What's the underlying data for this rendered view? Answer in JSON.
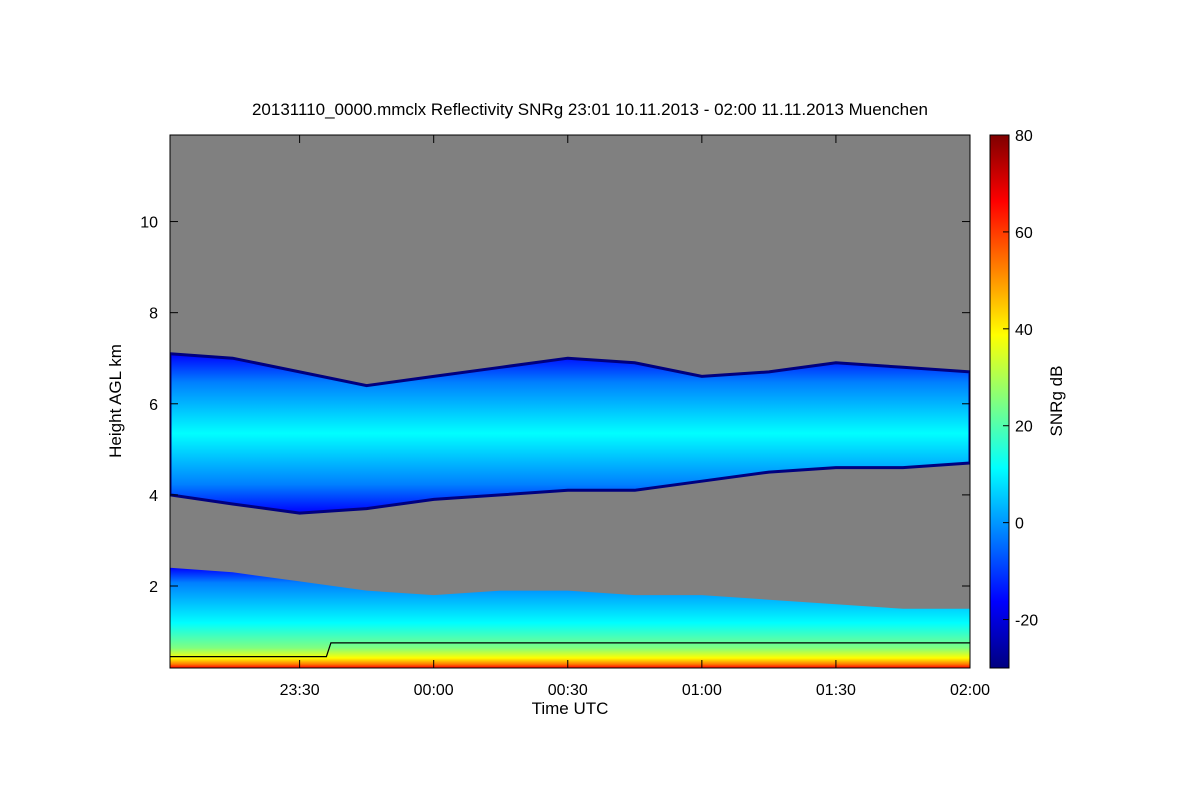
{
  "chart_data": {
    "type": "heatmap",
    "title": "20131110_0000.mmclx Reflectivity SNRg   23:01 10.11.2013 - 02:00 11.11.2013 Muenchen",
    "xlabel": "Time UTC",
    "ylabel": "Height AGL km",
    "colorbar_label": "SNRg dB",
    "xlim_minutes": [
      -59,
      120
    ],
    "ylim": [
      0.2,
      11.9
    ],
    "x_ticks": [
      {
        "minutes": -30,
        "label": "23:30"
      },
      {
        "minutes": 0,
        "label": "00:00"
      },
      {
        "minutes": 30,
        "label": "00:30"
      },
      {
        "minutes": 60,
        "label": "01:00"
      },
      {
        "minutes": 90,
        "label": "01:30"
      },
      {
        "minutes": 120,
        "label": "02:00"
      }
    ],
    "y_ticks": [
      {
        "value": 2,
        "label": "2"
      },
      {
        "value": 4,
        "label": "4"
      },
      {
        "value": 6,
        "label": "6"
      },
      {
        "value": 8,
        "label": "8"
      },
      {
        "value": 10,
        "label": "10"
      }
    ],
    "colorbar_range": [
      -30,
      80
    ],
    "colorbar_ticks": [
      {
        "value": -20,
        "label": "-20"
      },
      {
        "value": 0,
        "label": "0"
      },
      {
        "value": 20,
        "label": "20"
      },
      {
        "value": 40,
        "label": "40"
      },
      {
        "value": 60,
        "label": "60"
      },
      {
        "value": 80,
        "label": "80"
      }
    ],
    "colormap": [
      "#00007f",
      "#0000ff",
      "#0080ff",
      "#00ffff",
      "#80ff80",
      "#ffff00",
      "#ff8000",
      "#ff0000",
      "#7f0000"
    ],
    "background_color": "#808080",
    "upper_cloud_layer": {
      "time_minutes": [
        -59,
        -45,
        -30,
        -15,
        0,
        15,
        30,
        45,
        60,
        75,
        90,
        105,
        120
      ],
      "top_km": [
        7.1,
        7.0,
        6.7,
        6.4,
        6.6,
        6.8,
        7.0,
        6.9,
        6.6,
        6.7,
        6.9,
        6.8,
        6.7
      ],
      "base_km": [
        4.0,
        3.8,
        3.6,
        3.7,
        3.9,
        4.0,
        4.1,
        4.1,
        4.3,
        4.5,
        4.6,
        4.6,
        4.7
      ],
      "peak_snr_db": 15
    },
    "lower_layer": {
      "time_minutes": [
        -59,
        -45,
        -30,
        -15,
        0,
        15,
        30,
        45,
        60,
        75,
        90,
        105,
        120
      ],
      "top_km": [
        2.4,
        2.3,
        2.1,
        1.9,
        1.8,
        1.9,
        1.9,
        1.8,
        1.8,
        1.7,
        1.6,
        1.5,
        1.5
      ],
      "peak_snr_db": 70
    },
    "boundary_line": {
      "time_minutes": [
        -59,
        -24,
        -23,
        120
      ],
      "height_km": [
        0.45,
        0.45,
        0.75,
        0.75
      ]
    }
  }
}
